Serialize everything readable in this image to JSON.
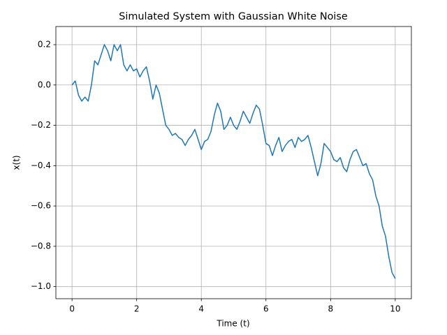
{
  "chart_data": {
    "type": "line",
    "title": "Simulated System with Gaussian White Noise",
    "xlabel": "Time (t)",
    "ylabel": "x(t)",
    "x": [
      0,
      0.1,
      0.2,
      0.3,
      0.4,
      0.5,
      0.6,
      0.7,
      0.8,
      0.9,
      1,
      1.1,
      1.2,
      1.3,
      1.4,
      1.5,
      1.6,
      1.7,
      1.8,
      1.9,
      2,
      2.1,
      2.2,
      2.3,
      2.4,
      2.5,
      2.6,
      2.7,
      2.8,
      2.9,
      3,
      3.1,
      3.2,
      3.3,
      3.4,
      3.5,
      3.6,
      3.7,
      3.8,
      3.9,
      4,
      4.1,
      4.2,
      4.3,
      4.4,
      4.5,
      4.6,
      4.7,
      4.8,
      4.9,
      5,
      5.1,
      5.2,
      5.3,
      5.4,
      5.5,
      5.6,
      5.7,
      5.8,
      5.9,
      6,
      6.1,
      6.2,
      6.3,
      6.4,
      6.5,
      6.6,
      6.7,
      6.8,
      6.9,
      7,
      7.1,
      7.2,
      7.3,
      7.4,
      7.5,
      7.6,
      7.7,
      7.8,
      7.9,
      8,
      8.1,
      8.2,
      8.3,
      8.4,
      8.5,
      8.6,
      8.7,
      8.8,
      8.9,
      9,
      9.1,
      9.2,
      9.3,
      9.4,
      9.5,
      9.6,
      9.7,
      9.8,
      9.9,
      10
    ],
    "series": [
      {
        "name": "x(t)",
        "color": "#1f77b4",
        "values": [
          0,
          0.02,
          -0.05,
          -0.08,
          -0.06,
          -0.08,
          0,
          0.12,
          0.1,
          0.15,
          0.2,
          0.17,
          0.12,
          0.2,
          0.17,
          0.2,
          0.1,
          0.07,
          0.1,
          0.07,
          0.08,
          0.04,
          0.07,
          0.09,
          0.02,
          -0.07,
          0,
          -0.04,
          -0.12,
          -0.2,
          -0.22,
          -0.25,
          -0.24,
          -0.26,
          -0.27,
          -0.3,
          -0.27,
          -0.25,
          -0.22,
          -0.27,
          -0.32,
          -0.28,
          -0.27,
          -0.23,
          -0.15,
          -0.09,
          -0.13,
          -0.22,
          -0.2,
          -0.16,
          -0.2,
          -0.22,
          -0.18,
          -0.13,
          -0.16,
          -0.19,
          -0.14,
          -0.1,
          -0.12,
          -0.2,
          -0.29,
          -0.3,
          -0.35,
          -0.3,
          -0.26,
          -0.33,
          -0.3,
          -0.28,
          -0.27,
          -0.31,
          -0.26,
          -0.28,
          -0.27,
          -0.25,
          -0.31,
          -0.38,
          -0.45,
          -0.39,
          -0.29,
          -0.31,
          -0.33,
          -0.37,
          -0.38,
          -0.36,
          -0.41,
          -0.43,
          -0.37,
          -0.33,
          -0.32,
          -0.36,
          -0.4,
          -0.39,
          -0.44,
          -0.47,
          -0.55,
          -0.6,
          -0.7,
          -0.75,
          -0.85,
          -0.93,
          -0.96
        ]
      }
    ],
    "xlim": [
      -0.5,
      10.5
    ],
    "xticks": [
      0,
      2,
      4,
      6,
      8,
      10
    ],
    "ylim": [
      -1.06,
      0.29
    ],
    "yticks": [
      {
        "value": -1,
        "label": "−1.0"
      },
      {
        "value": -0.8,
        "label": "−0.8"
      },
      {
        "value": -0.6,
        "label": "−0.6"
      },
      {
        "value": -0.4,
        "label": "−0.4"
      },
      {
        "value": -0.2,
        "label": "−0.2"
      },
      {
        "value": 0,
        "label": "0.0"
      },
      0.2
    ],
    "grid": true
  }
}
